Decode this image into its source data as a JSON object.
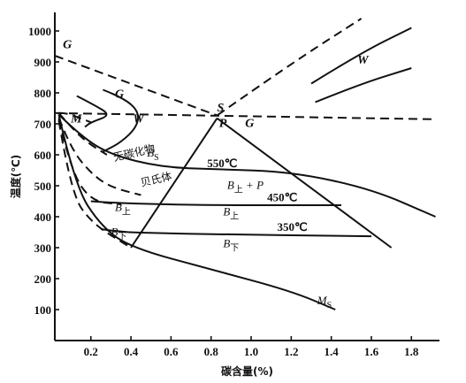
{
  "chart_data": {
    "type": "line",
    "xlabel": "碳含量(%)",
    "ylabel": "温度(℃)",
    "xlim": [
      0.02,
      1.94
    ],
    "ylim": [
      0,
      1060
    ],
    "x_ticks": [
      "0.2",
      "0.4",
      "0.6",
      "0.8",
      "1.0",
      "1.2",
      "1.4",
      "1.6",
      "1.8"
    ],
    "x_tick_values": [
      0.2,
      0.4,
      0.6,
      0.8,
      1.0,
      1.2,
      1.4,
      1.6,
      1.8
    ],
    "y_ticks": [
      "100",
      "200",
      "300",
      "400",
      "500",
      "600",
      "700",
      "800",
      "900",
      "1000"
    ],
    "y_tick_values": [
      100,
      200,
      300,
      400,
      500,
      600,
      700,
      800,
      900,
      1000
    ],
    "point_labels": [
      {
        "key": "G_top",
        "text": "G",
        "x": 0.06,
        "y": 945
      },
      {
        "key": "G_mid",
        "text": "G",
        "x": 0.32,
        "y": 785
      },
      {
        "key": "G_right",
        "text": "G",
        "x": 0.97,
        "y": 690
      },
      {
        "key": "S",
        "text": "S",
        "x": 0.83,
        "y": 740
      },
      {
        "key": "P",
        "text": "P",
        "x": 0.84,
        "y": 690
      }
    ],
    "region_labels": [
      {
        "key": "M",
        "text": "M",
        "x": 0.1,
        "y": 705,
        "style": "region-b"
      },
      {
        "key": "W_left",
        "text": "W",
        "x": 0.41,
        "y": 705,
        "style": "region-b"
      },
      {
        "key": "W_right",
        "text": "W",
        "x": 1.53,
        "y": 895,
        "style": "region-b"
      },
      {
        "key": "Bs",
        "base": "B",
        "sub": "S",
        "x": 0.48,
        "y": 595
      },
      {
        "key": "B_upper_region",
        "base": "B",
        "sub": "上",
        "x": 0.32,
        "y": 418
      },
      {
        "key": "B_lower_region",
        "base": "B",
        "sub": "下",
        "x": 0.3,
        "y": 338
      },
      {
        "key": "B_upper_P",
        "base": "B",
        "sub": "上",
        "suffix": " + P",
        "x": 0.88,
        "y": 490
      },
      {
        "key": "B_upper_450",
        "base": "B",
        "sub": "上",
        "x": 0.86,
        "y": 405
      },
      {
        "key": "B_lower_350",
        "base": "B",
        "sub": "下",
        "x": 0.86,
        "y": 302
      },
      {
        "key": "Ms",
        "base": "M",
        "sub": "S",
        "x": 1.33,
        "y": 117
      }
    ],
    "annotations": [
      {
        "key": "t550",
        "text": "550℃",
        "x": 0.78,
        "y": 560
      },
      {
        "key": "t450",
        "text": "450℃",
        "x": 1.08,
        "y": 450
      },
      {
        "key": "t350",
        "text": "350℃",
        "x": 1.13,
        "y": 354
      }
    ],
    "region_text": [
      {
        "key": "wutan",
        "text": "无碳化物",
        "x": 0.42,
        "y": 595,
        "angle": -13
      },
      {
        "key": "beishiti",
        "text": "贝氏体",
        "x": 0.53,
        "y": 509,
        "angle": -13
      }
    ],
    "curves": [
      {
        "name": "G-S (A3)",
        "style": "dash",
        "points": [
          [
            0.02,
            920
          ],
          [
            0.83,
            727
          ]
        ]
      },
      {
        "name": "A1",
        "style": "dash",
        "points": [
          [
            0.02,
            735
          ],
          [
            1.9,
            715
          ]
        ]
      },
      {
        "name": "Acm",
        "style": "dash",
        "points": [
          [
            0.83,
            727
          ],
          [
            1.2,
            895
          ],
          [
            1.55,
            1040
          ]
        ]
      },
      {
        "name": "M boundary upper",
        "style": "dash",
        "points": [
          [
            0.04,
            735
          ],
          [
            0.08,
            735
          ],
          [
            0.14,
            720
          ],
          [
            0.2,
            705
          ]
        ]
      },
      {
        "name": "G boundary (0.12)",
        "style": "solid",
        "points": [
          [
            0.13,
            790
          ],
          [
            0.22,
            760
          ],
          [
            0.3,
            728
          ],
          [
            0.2,
            705
          ],
          [
            0.17,
            690
          ]
        ]
      },
      {
        "name": "W upper curve",
        "style": "solid",
        "points": [
          [
            0.26,
            810
          ],
          [
            0.36,
            785
          ],
          [
            0.44,
            740
          ],
          [
            0.43,
            690
          ],
          [
            0.35,
            640
          ],
          [
            0.26,
            610
          ]
        ]
      },
      {
        "name": "M-dash 1",
        "style": "dash",
        "points": [
          [
            0.04,
            735
          ],
          [
            0.1,
            690
          ],
          [
            0.18,
            640
          ],
          [
            0.28,
            600
          ]
        ]
      },
      {
        "name": "Bs line",
        "style": "solid",
        "points": [
          [
            0.04,
            730
          ],
          [
            0.15,
            660
          ],
          [
            0.3,
            600
          ],
          [
            0.55,
            560
          ],
          [
            0.83,
            553
          ],
          [
            1.2,
            545
          ],
          [
            1.6,
            490
          ],
          [
            1.92,
            400
          ]
        ]
      },
      {
        "name": "M-dash 2",
        "style": "dash",
        "points": [
          [
            0.04,
            720
          ],
          [
            0.1,
            620
          ],
          [
            0.2,
            540
          ],
          [
            0.3,
            495
          ],
          [
            0.45,
            470
          ]
        ]
      },
      {
        "name": "M-dash 3",
        "style": "dash",
        "points": [
          [
            0.04,
            715
          ],
          [
            0.1,
            550
          ],
          [
            0.2,
            450
          ],
          [
            0.35,
            440
          ]
        ]
      },
      {
        "name": "M-dash 4",
        "style": "dash",
        "points": [
          [
            0.04,
            710
          ],
          [
            0.1,
            480
          ],
          [
            0.2,
            380
          ],
          [
            0.4,
            300
          ]
        ]
      },
      {
        "name": "B-upper curve",
        "style": "solid",
        "points": [
          [
            0.2,
            450
          ],
          [
            0.3,
            445
          ],
          [
            0.55,
            440
          ],
          [
            0.85,
            437
          ],
          [
            1.45,
            437
          ]
        ]
      },
      {
        "name": "B-lower curve",
        "style": "solid",
        "points": [
          [
            0.25,
            360
          ],
          [
            0.35,
            350
          ],
          [
            0.55,
            347
          ],
          [
            0.8,
            343
          ],
          [
            1.6,
            337
          ]
        ]
      },
      {
        "name": "Ms",
        "style": "solid",
        "points": [
          [
            0.04,
            730
          ],
          [
            0.12,
            500
          ],
          [
            0.25,
            370
          ],
          [
            0.4,
            300
          ],
          [
            0.8,
            230
          ],
          [
            1.2,
            160
          ],
          [
            1.42,
            100
          ]
        ]
      },
      {
        "name": "P-left (proeutectoid)",
        "style": "solid",
        "points": [
          [
            0.83,
            718
          ],
          [
            0.4,
            300
          ]
        ]
      },
      {
        "name": "P-right",
        "style": "solid",
        "points": [
          [
            0.83,
            718
          ],
          [
            1.7,
            300
          ]
        ]
      },
      {
        "name": "W right upper",
        "style": "solid",
        "points": [
          [
            1.3,
            830
          ],
          [
            1.55,
            930
          ],
          [
            1.8,
            1010
          ]
        ]
      },
      {
        "name": "W right lower",
        "style": "solid",
        "points": [
          [
            1.32,
            770
          ],
          [
            1.55,
            830
          ],
          [
            1.8,
            880
          ]
        ]
      }
    ]
  }
}
